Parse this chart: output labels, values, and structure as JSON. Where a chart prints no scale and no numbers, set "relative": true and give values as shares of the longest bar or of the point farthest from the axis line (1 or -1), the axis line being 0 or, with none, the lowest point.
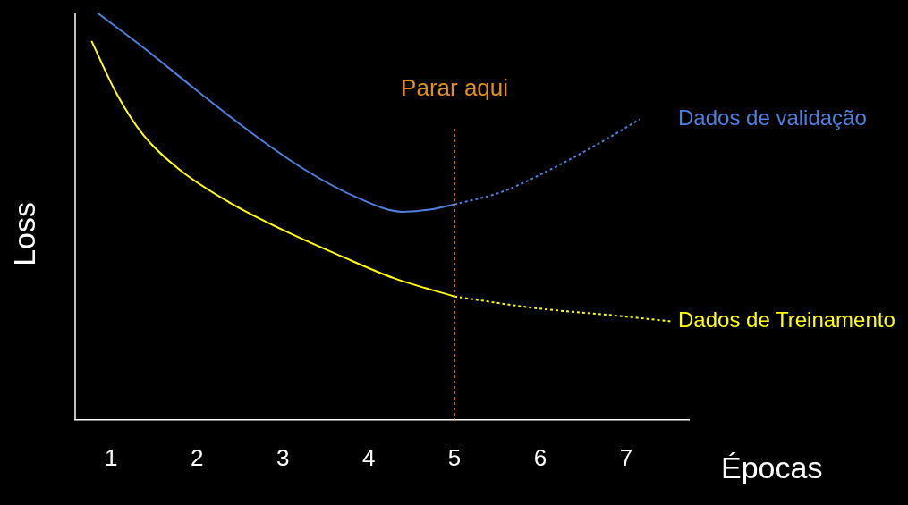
{
  "chart_data": {
    "type": "line",
    "xlabel": "Épocas",
    "ylabel": "Loss",
    "relative": true,
    "marker": "none",
    "grid": false,
    "legend": false,
    "xlim": [
      0.58,
      7.73
    ],
    "xticks": [
      1,
      2,
      3,
      4,
      5,
      6,
      7
    ],
    "ref_lines": [
      {
        "axis": "x",
        "value": 5,
        "label": "Parar aqui",
        "color": "#e0901a",
        "line_style": "dotted"
      }
    ],
    "series": [
      {
        "color": "#4f7fdc",
        "line_style": "solid",
        "x": [
          0.833,
          1.375,
          2,
          2.625,
          3.25,
          3.875,
          4.396,
          4.708,
          5
        ],
        "values": [
          1,
          0.914,
          0.808,
          0.706,
          0.615,
          0.545,
          0.511,
          0.516,
          0.529
        ]
      },
      {
        "name": "Dados de validação",
        "color": "#4f7fdc",
        "line_style": "dotted",
        "x": [
          5,
          5.542,
          6.167,
          6.792,
          7.156
        ],
        "values": [
          0.529,
          0.559,
          0.62,
          0.692,
          0.738
        ]
      },
      {
        "color": "#ffff00",
        "line_style": "solid",
        "x": [
          0.771,
          1.0625,
          1.375,
          1.792,
          2.417,
          3.042,
          3.667,
          4.292,
          5
        ],
        "values": [
          0.93,
          0.801,
          0.699,
          0.615,
          0.529,
          0.462,
          0.403,
          0.348,
          0.303
        ]
      },
      {
        "name": "Dados de Treinamento",
        "color": "#ffff00",
        "line_style": "dotted",
        "x": [
          5,
          5.958,
          6.792,
          7.521
        ],
        "values": [
          0.303,
          0.274,
          0.258,
          0.242
        ]
      }
    ]
  }
}
